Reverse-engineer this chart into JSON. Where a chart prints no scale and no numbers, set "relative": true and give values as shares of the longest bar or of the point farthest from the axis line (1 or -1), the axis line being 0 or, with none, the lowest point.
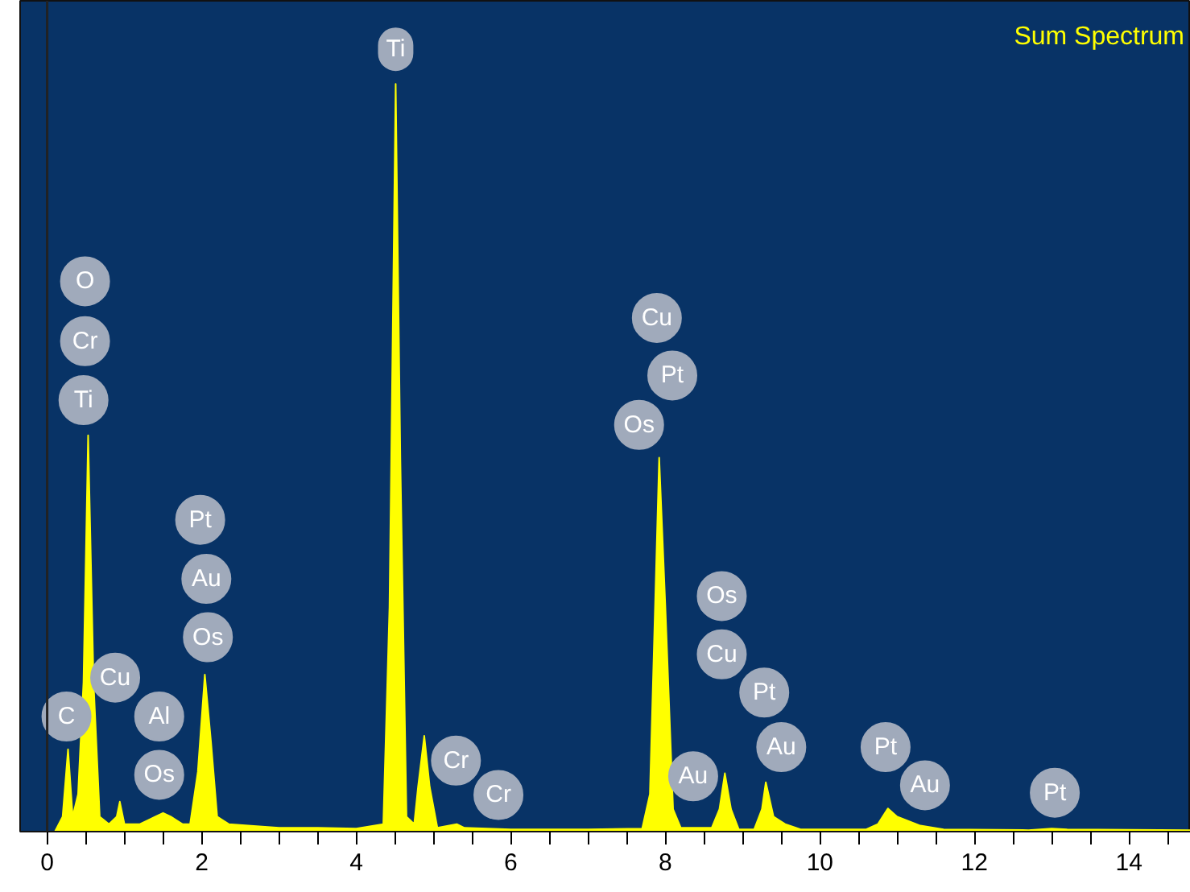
{
  "chart_data": {
    "type": "area",
    "title": "Sum Spectrum",
    "relative": true,
    "x": [
      0.1,
      0.2,
      0.27,
      0.33,
      0.4,
      0.47,
      0.53,
      0.6,
      0.68,
      0.8,
      0.9,
      0.94,
      1.0,
      1.2,
      1.4,
      1.5,
      1.6,
      1.75,
      1.85,
      1.95,
      2.04,
      2.12,
      2.2,
      2.35,
      2.6,
      3.0,
      3.5,
      4.0,
      4.35,
      4.43,
      4.51,
      4.57,
      4.65,
      4.75,
      4.8,
      4.88,
      4.95,
      5.05,
      5.3,
      5.4,
      6.0,
      7.0,
      7.7,
      7.8,
      7.92,
      8.0,
      8.1,
      8.2,
      8.6,
      8.7,
      8.77,
      8.85,
      8.95,
      9.15,
      9.25,
      9.3,
      9.4,
      9.55,
      9.75,
      10.6,
      10.75,
      10.88,
      11.0,
      11.3,
      11.6,
      12.7,
      13.0,
      13.2,
      14.8
    ],
    "series": [
      {
        "color": "#ffff00",
        "values": [
          0,
          0.02,
          0.11,
          0.02,
          0.05,
          0.2,
          0.53,
          0.2,
          0.02,
          0.01,
          0.02,
          0.04,
          0.01,
          0.01,
          0.02,
          0.025,
          0.02,
          0.01,
          0.01,
          0.08,
          0.21,
          0.12,
          0.02,
          0.01,
          0.008,
          0.005,
          0.005,
          0.004,
          0.01,
          0.3,
          1.0,
          0.5,
          0.02,
          0.01,
          0.06,
          0.128,
          0.06,
          0.005,
          0.01,
          0.005,
          0.003,
          0.003,
          0.004,
          0.05,
          0.5,
          0.3,
          0.03,
          0.005,
          0.005,
          0.03,
          0.078,
          0.03,
          0.003,
          0.003,
          0.03,
          0.066,
          0.02,
          0.01,
          0.003,
          0.003,
          0.01,
          0.031,
          0.02,
          0.008,
          0.003,
          0.002,
          0.004,
          0.003,
          0.002
        ]
      }
    ],
    "xlim": [
      -0.35,
      14.8
    ],
    "xticks": [
      0,
      {
        "value": 0.5,
        "label": null
      },
      {
        "value": 1,
        "label": null
      },
      {
        "value": 1.5,
        "label": null
      },
      2,
      {
        "value": 2.5,
        "label": null
      },
      {
        "value": 3,
        "label": null
      },
      {
        "value": 3.5,
        "label": null
      },
      4,
      {
        "value": 4.5,
        "label": null
      },
      {
        "value": 5,
        "label": null
      },
      {
        "value": 5.5,
        "label": null
      },
      6,
      {
        "value": 6.5,
        "label": null
      },
      {
        "value": 7,
        "label": null
      },
      {
        "value": 7.5,
        "label": null
      },
      8,
      {
        "value": 8.5,
        "label": null
      },
      {
        "value": 9,
        "label": null
      },
      {
        "value": 9.5,
        "label": null
      },
      10,
      {
        "value": 10.5,
        "label": null
      },
      {
        "value": 11,
        "label": null
      },
      {
        "value": 11.5,
        "label": null
      },
      12,
      {
        "value": 12.5,
        "label": null
      },
      {
        "value": 13,
        "label": null
      },
      {
        "value": 13.5,
        "label": null
      },
      14,
      {
        "value": 14.5,
        "label": null
      }
    ],
    "grid": false,
    "ref_lines": [
      {
        "axis": "x",
        "value": 0,
        "color": "#222222"
      }
    ],
    "annotations": [
      {
        "text": "O",
        "x": 0.49,
        "y": 0.736
      },
      {
        "text": "Cr",
        "x": 0.49,
        "y": 0.656
      },
      {
        "text": "Ti",
        "x": 0.47,
        "y": 0.577
      },
      {
        "text": "C",
        "x": 0.25,
        "y": 0.154
      },
      {
        "text": "Cu",
        "x": 0.88,
        "y": 0.206
      },
      {
        "text": "Al",
        "x": 1.45,
        "y": 0.154
      },
      {
        "text": "Os",
        "x": 1.45,
        "y": 0.076
      },
      {
        "text": "Pt",
        "x": 1.98,
        "y": 0.417
      },
      {
        "text": "Au",
        "x": 2.06,
        "y": 0.338
      },
      {
        "text": "Os",
        "x": 2.08,
        "y": 0.26
      },
      "Ti",
      {
        "text": "Cr",
        "x": 5.29,
        "y": 0.095
      },
      {
        "text": "Cr",
        "x": 5.84,
        "y": 0.049
      },
      {
        "text": "Cu",
        "x": 7.89,
        "y": 0.687
      },
      {
        "text": "Pt",
        "x": 8.09,
        "y": 0.61
      },
      {
        "text": "Os",
        "x": 7.66,
        "y": 0.544
      },
      {
        "text": "Os",
        "x": 8.73,
        "y": 0.315
      },
      {
        "text": "Cu",
        "x": 8.73,
        "y": 0.237
      },
      {
        "text": "Pt",
        "x": 9.28,
        "y": 0.186
      },
      {
        "text": "Au",
        "x": 9.5,
        "y": 0.113
      },
      {
        "text": "Au",
        "x": 8.36,
        "y": 0.074
      },
      {
        "text": "Pt",
        "x": 10.85,
        "y": 0.113
      },
      {
        "text": "Au",
        "x": 11.36,
        "y": 0.062
      },
      {
        "text": "Pt",
        "x": 13.04,
        "y": 0.052
      }
    ]
  }
}
